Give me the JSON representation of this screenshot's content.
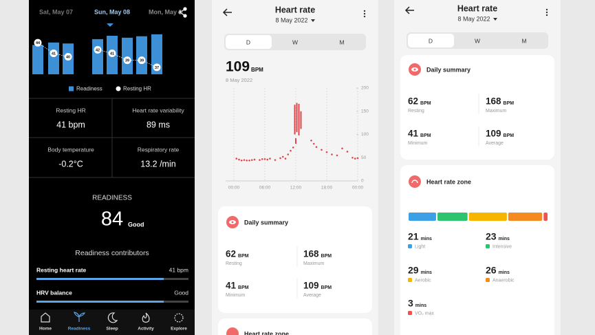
{
  "left_screen": {
    "dates": [
      "Sat, May 07",
      "Sun, May 08",
      "Mon, May 0"
    ],
    "readiness_chart": {
      "type": "bar",
      "ylim": [
        0,
        100
      ],
      "values": [
        61,
        66,
        64,
        73,
        80,
        76,
        79,
        83
      ],
      "color": "#3d8fd6",
      "resting_hr": [
        44,
        41,
        40,
        42,
        41,
        39,
        39,
        37
      ],
      "resting_hr_lim": [
        35,
        46
      ],
      "legend": [
        "Readiness",
        "Resting HR"
      ]
    },
    "stats": [
      {
        "label": "Resting HR",
        "value": "41 bpm"
      },
      {
        "label": "Heart rate variability",
        "value": "89 ms"
      },
      {
        "label": "Body temperature",
        "value": "-0.2°C"
      },
      {
        "label": "Respiratory rate",
        "value": "13.2 /min"
      }
    ],
    "readiness": {
      "title": "READINESS",
      "score": 84,
      "rating": "Good"
    },
    "contributors": {
      "title": "Readiness contributors",
      "items": [
        {
          "label": "Resting heart rate",
          "value": "41 bpm"
        },
        {
          "label": "HRV balance",
          "value": "Good"
        }
      ]
    },
    "nav": [
      "Home",
      "Readiness",
      "Sleep",
      "Activity",
      "Explore"
    ]
  },
  "middle_screen": {
    "header": {
      "title": "Heart rate",
      "date": "8 May 2022"
    },
    "tabs": [
      "D",
      "W",
      "M"
    ],
    "current": {
      "value": 109,
      "unit": "BPM",
      "date": "8 May 2022"
    },
    "chart": {
      "type": "scatter",
      "xlim": [
        0,
        24
      ],
      "ylim": [
        0,
        200
      ],
      "yticks": [
        0,
        50,
        100,
        150,
        200
      ],
      "xticks": [
        {
          "value": 0,
          "label": "00:00"
        },
        {
          "value": 6,
          "label": "06:00"
        },
        {
          "value": 12,
          "label": "12:00"
        },
        {
          "value": 18,
          "label": "18:00"
        },
        {
          "value": 24,
          "label": "00:00"
        }
      ],
      "color": "#e0474c",
      "points": {
        "x": [
          0.5,
          1,
          1.5,
          2,
          2.5,
          3,
          3.5,
          4,
          5,
          5.5,
          6,
          6.5,
          7,
          8,
          9,
          9.5,
          10,
          10.5,
          11,
          11.5,
          15,
          15.5,
          16,
          17,
          18,
          19,
          20,
          21,
          22,
          23,
          23.5,
          24
        ],
        "y": [
          48,
          46,
          44,
          45,
          44,
          44,
          45,
          46,
          45,
          47,
          47,
          46,
          48,
          45,
          49,
          52,
          48,
          57,
          65,
          72,
          87,
          80,
          73,
          67,
          62,
          57,
          55,
          70,
          63,
          50,
          48,
          49
        ]
      },
      "ranges": {
        "x": [
          11.8,
          12.0,
          12.2,
          12.6,
          13.0
        ],
        "low": [
          100,
          80,
          105,
          98,
          112
        ],
        "high": [
          164,
          92,
          168,
          166,
          150
        ]
      }
    },
    "daily_summary": {
      "title": "Daily summary",
      "stats": [
        {
          "value": 62,
          "unit": "BPM",
          "label": "Resting"
        },
        {
          "value": 168,
          "unit": "BPM",
          "label": "Maximum"
        },
        {
          "value": 41,
          "unit": "BPM",
          "label": "Minimum"
        },
        {
          "value": 109,
          "unit": "BPM",
          "label": "Average"
        }
      ]
    },
    "next_card": "Heart rate zone"
  },
  "right_screen": {
    "header": {
      "title": "Heart rate",
      "date": "8 May 2022"
    },
    "tabs": [
      "D",
      "W",
      "M"
    ],
    "daily_summary": {
      "title": "Daily summary",
      "stats": [
        {
          "value": 62,
          "unit": "BPM",
          "label": "Resting"
        },
        {
          "value": 168,
          "unit": "BPM",
          "label": "Maximum"
        },
        {
          "value": 41,
          "unit": "BPM",
          "label": "Minimum"
        },
        {
          "value": 109,
          "unit": "BPM",
          "label": "Average"
        }
      ]
    },
    "zones": {
      "title": "Heart rate zone",
      "items": [
        {
          "minutes": 21,
          "unit": "mins",
          "label": "Light",
          "color": "#3ba0e6"
        },
        {
          "minutes": 23,
          "unit": "mins",
          "label": "Intensive",
          "color": "#2ec46e"
        },
        {
          "minutes": 29,
          "unit": "mins",
          "label": "Aerobic",
          "color": "#f7b500"
        },
        {
          "minutes": 26,
          "unit": "mins",
          "label": "Anaerobic",
          "color": "#f58b1f"
        },
        {
          "minutes": 3,
          "unit": "mins",
          "label": "VO₂ max",
          "color": "#f0524f"
        }
      ]
    }
  }
}
